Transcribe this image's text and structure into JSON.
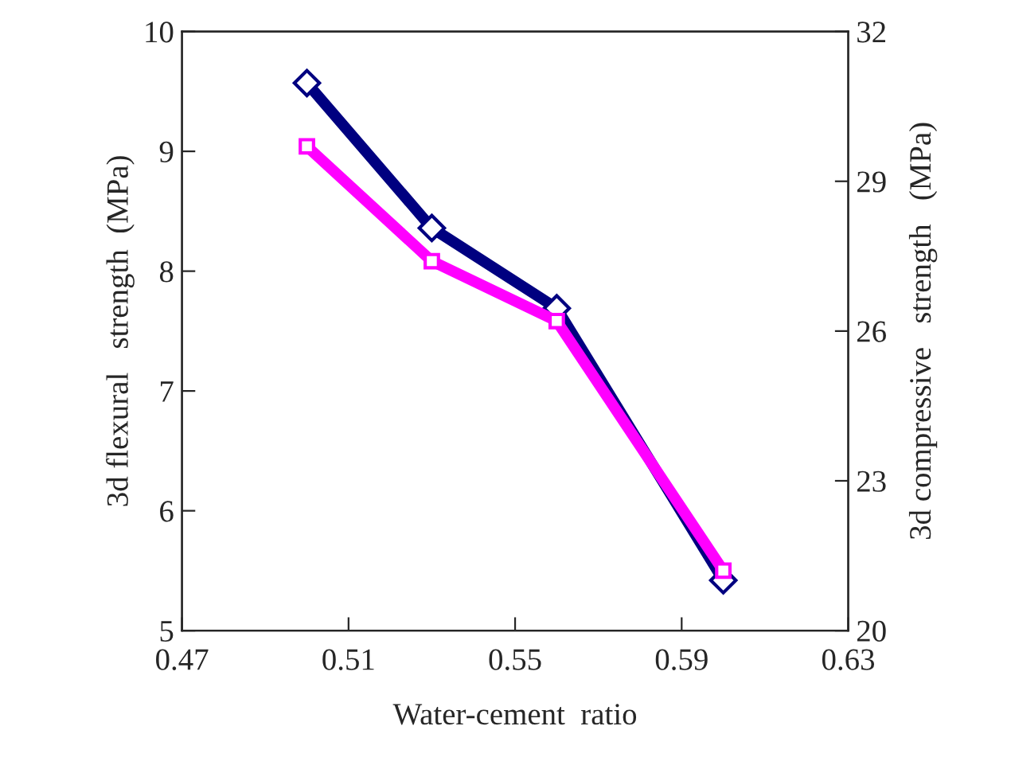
{
  "chart_data": {
    "type": "line",
    "xlabel": "Water-cement  ratio",
    "ylabel": "3d flexural   strength  (MPa)",
    "y2label": "3d compressive   strength   (MPa)",
    "x": [
      0.5,
      0.53,
      0.56,
      0.6
    ],
    "series": [
      {
        "color": "#000080",
        "marker": "diamond",
        "values": [
          9.57,
          8.36,
          7.69,
          5.42
        ]
      },
      {
        "color": "#ff00ff",
        "marker": "square",
        "axis": "y2",
        "values": [
          29.7,
          27.4,
          26.2,
          21.2
        ]
      }
    ],
    "xlim": [
      0.47,
      0.63
    ],
    "xticks": [
      {
        "value": 0.47,
        "label": "0.47"
      },
      {
        "value": 0.51,
        "label": "0.51"
      },
      {
        "value": 0.55,
        "label": "0.55"
      },
      {
        "value": 0.59,
        "label": "0.59"
      },
      {
        "value": 0.63,
        "label": "0.63"
      }
    ],
    "ylim": [
      5,
      10
    ],
    "yticks": [
      5,
      6,
      7,
      8,
      9,
      10
    ],
    "y2lim": [
      20,
      32
    ],
    "y2ticks": [
      20,
      23,
      26,
      29,
      32
    ],
    "grid": false,
    "legend": false,
    "line_style": "solid"
  }
}
